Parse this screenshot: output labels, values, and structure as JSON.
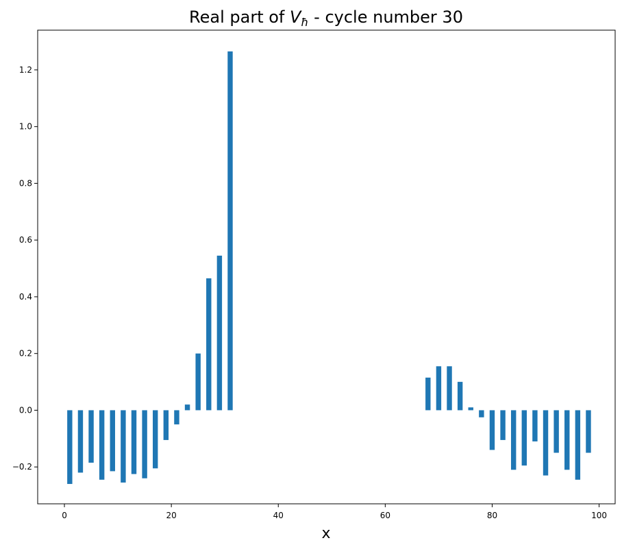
{
  "chart_data": {
    "type": "bar",
    "title_prefix": "Real part of ",
    "title_symbol": "V",
    "title_subscript": "ħ",
    "title_suffix": " - cycle number 30",
    "xlabel": "x",
    "ylabel": "",
    "xlim": [
      -5,
      103
    ],
    "ylim": [
      -0.33,
      1.34
    ],
    "xticks": [
      0,
      20,
      40,
      60,
      80,
      100
    ],
    "xtick_labels": [
      "0",
      "20",
      "40",
      "60",
      "80",
      "100"
    ],
    "yticks": [
      -0.2,
      0.0,
      0.2,
      0.4,
      0.6,
      0.8,
      1.0,
      1.2
    ],
    "ytick_labels": [
      "−0.2",
      "0.0",
      "0.2",
      "0.4",
      "0.6",
      "0.8",
      "1.0",
      "1.2"
    ],
    "grid": false,
    "bar_color": "#1f77b4",
    "bar_width": 0.95,
    "x": [
      1,
      3,
      5,
      7,
      9,
      11,
      13,
      15,
      17,
      19,
      21,
      23,
      25,
      27,
      29,
      31,
      68,
      70,
      72,
      74,
      76,
      78,
      80,
      82,
      84,
      86,
      88,
      90,
      92,
      94,
      96,
      98
    ],
    "values": [
      -0.26,
      -0.22,
      -0.185,
      -0.245,
      -0.215,
      -0.255,
      -0.225,
      -0.24,
      -0.205,
      -0.105,
      -0.05,
      0.02,
      0.2,
      0.465,
      0.545,
      1.265,
      0.115,
      0.155,
      0.155,
      0.1,
      0.01,
      -0.025,
      -0.14,
      -0.105,
      -0.21,
      -0.195,
      -0.11,
      -0.23,
      -0.15,
      -0.21,
      -0.245,
      -0.15
    ]
  }
}
